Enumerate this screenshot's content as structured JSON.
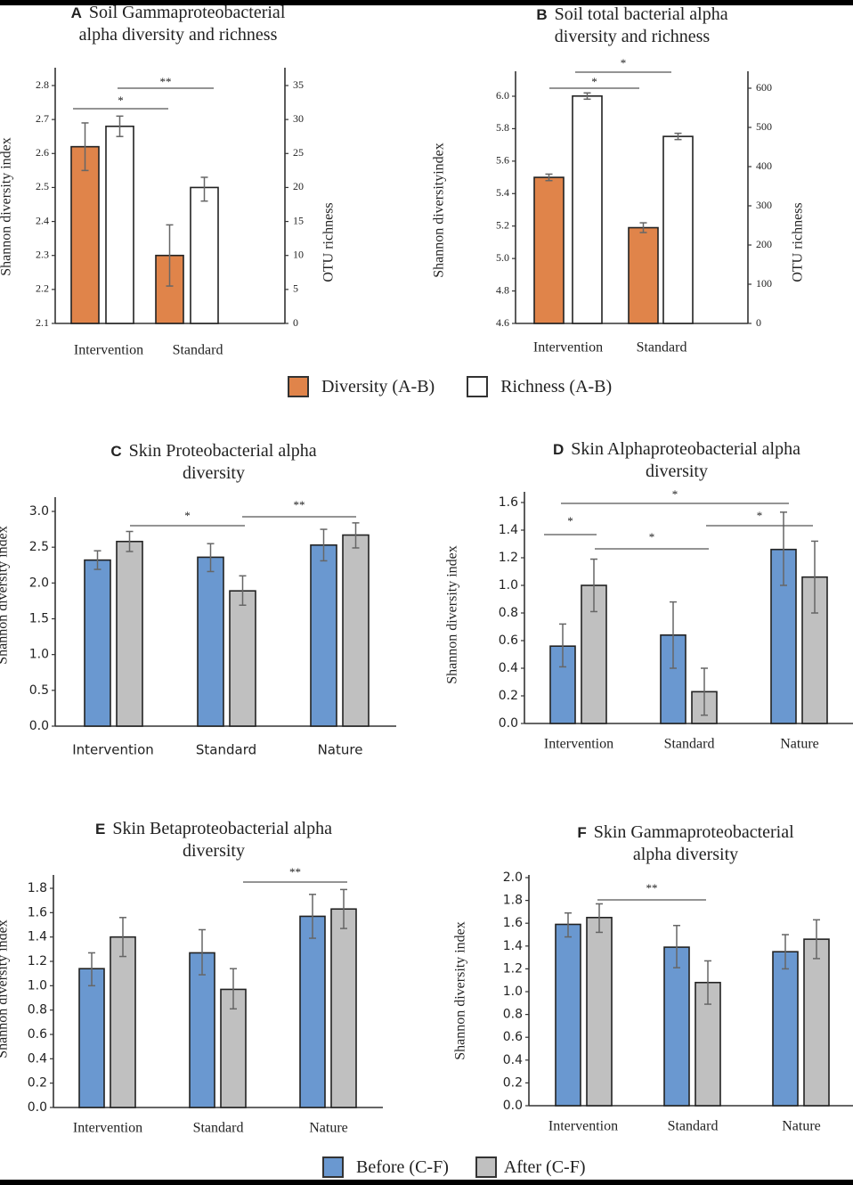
{
  "colors": {
    "diversity": "#e0844a",
    "richness": "#ffffff",
    "before": "#6a98d0",
    "after": "#c0c0c0",
    "axis": "#333333",
    "errorbar": "#666666"
  },
  "legend_ab": {
    "items": [
      {
        "label": "Diversity (A-B)",
        "color": "#e0844a"
      },
      {
        "label": "Richness (A-B)",
        "color": "#ffffff"
      }
    ]
  },
  "legend_cf": {
    "items": [
      {
        "label": "Before (C-F)",
        "color": "#6a98d0"
      },
      {
        "label": "After (C-F)",
        "color": "#c0c0c0"
      }
    ]
  },
  "chart_data": [
    {
      "id": "A",
      "type": "bar",
      "letter": "A",
      "title_line1": "Soil Gammaproteobacterial",
      "title_line2": "alpha diversity and  richness",
      "categories": [
        "Intervention",
        "Standard"
      ],
      "ylabel": "Shannon diversity index",
      "ylabel2": "OTU richness",
      "ylim": [
        2.1,
        2.8
      ],
      "yticks": [
        "2.1",
        "2.2",
        "2.3",
        "2.4",
        "2.5",
        "2.6",
        "2.7",
        "2.8"
      ],
      "y2lim": [
        0,
        35
      ],
      "y2ticks": [
        "0",
        "5",
        "10",
        "15",
        "20",
        "25",
        "30",
        "35"
      ],
      "series": [
        {
          "name": "Diversity (A-B)",
          "axis": "left",
          "values": [
            2.62,
            2.3
          ],
          "err_low": [
            2.55,
            2.21
          ],
          "err_high": [
            2.69,
            2.39
          ]
        },
        {
          "name": "Richness (A-B)",
          "axis": "right",
          "values": [
            29.0,
            20.0
          ],
          "err_low": [
            27.5,
            18.0
          ],
          "err_high": [
            30.5,
            21.5
          ]
        }
      ],
      "significance": [
        {
          "label": "*",
          "from": "Intervention Diversity",
          "to": "Standard Diversity"
        },
        {
          "label": "**",
          "from": "Intervention Richness",
          "to": "Standard Richness"
        }
      ]
    },
    {
      "id": "B",
      "type": "bar",
      "letter": "B",
      "title_line1": "Soil total bacterial alpha",
      "title_line2": "diversity and richness",
      "categories": [
        "Intervention",
        "Standard"
      ],
      "ylabel": "Shannon diversityindex",
      "ylabel2": "OTU richness",
      "ylim": [
        4.6,
        6.0
      ],
      "yticks": [
        "4.6",
        "4.8",
        "5.0",
        "5.2",
        "5.4",
        "5.6",
        "5.8",
        "6.0"
      ],
      "y2lim": [
        0,
        600
      ],
      "y2ticks": [
        "0",
        "100",
        "200",
        "300",
        "400",
        "500",
        "600"
      ],
      "series": [
        {
          "name": "Diversity (A-B)",
          "axis": "left",
          "values": [
            5.5,
            5.19
          ],
          "err_low": [
            5.48,
            5.16
          ],
          "err_high": [
            5.52,
            5.22
          ]
        },
        {
          "name": "Richness (A-B)",
          "axis": "right",
          "values": [
            580,
            477
          ],
          "err_low": [
            572,
            469
          ],
          "err_high": [
            588,
            485
          ]
        }
      ],
      "significance": [
        {
          "label": "*",
          "from": "Intervention Diversity",
          "to": "Standard Diversity"
        },
        {
          "label": "*",
          "from": "Intervention Richness",
          "to": "Standard Richness"
        }
      ]
    },
    {
      "id": "C",
      "type": "bar",
      "letter": "C",
      "title_line1": "Skin Proteobacterial alpha",
      "title_line2": "diversity",
      "categories": [
        "Intervention",
        "Standard",
        "Nature"
      ],
      "ylabel": "Shannon diversity index",
      "ylim": [
        0,
        3.0
      ],
      "yticks": [
        "0.0",
        "0.5",
        "1.0",
        "1.5",
        "2.0",
        "2.5",
        "3.0"
      ],
      "series": [
        {
          "name": "Before (C-F)",
          "values": [
            2.32,
            2.36,
            2.53
          ],
          "err_low": [
            2.19,
            2.16,
            2.31
          ],
          "err_high": [
            2.45,
            2.55,
            2.75
          ]
        },
        {
          "name": "After (C-F)",
          "values": [
            2.58,
            1.89,
            2.67
          ],
          "err_low": [
            2.44,
            1.69,
            2.49
          ],
          "err_high": [
            2.72,
            2.1,
            2.84
          ]
        }
      ],
      "significance": [
        {
          "label": "*",
          "from": "Intervention After",
          "to": "Standard After"
        },
        {
          "label": "**",
          "from": "Standard After",
          "to": "Nature After"
        }
      ]
    },
    {
      "id": "D",
      "type": "bar",
      "letter": "D",
      "title_line1": "Skin Alphaproteobacterial alpha",
      "title_line2": "diversity",
      "categories": [
        "Intervention",
        "Standard",
        "Nature"
      ],
      "ylabel": "Shannon diversity index",
      "ylim": [
        0,
        1.6
      ],
      "yticks": [
        "0.0",
        "0.2",
        "0.4",
        "0.6",
        "0.8",
        "1.0",
        "1.2",
        "1.4",
        "1.6"
      ],
      "series": [
        {
          "name": "Before (C-F)",
          "values": [
            0.56,
            0.64,
            1.26
          ],
          "err_low": [
            0.41,
            0.4,
            1.0
          ],
          "err_high": [
            0.72,
            0.88,
            1.53
          ]
        },
        {
          "name": "After (C-F)",
          "values": [
            1.0,
            0.23,
            1.06
          ],
          "err_low": [
            0.81,
            0.06,
            0.8
          ],
          "err_high": [
            1.19,
            0.4,
            1.32
          ]
        }
      ],
      "significance": [
        {
          "label": "*",
          "from": "Intervention Before",
          "to": "Nature Before"
        },
        {
          "label": "*",
          "from": "Intervention Before",
          "to": "Intervention After"
        },
        {
          "label": "*",
          "from": "Intervention After",
          "to": "Standard After"
        },
        {
          "label": "*",
          "from": "Standard After",
          "to": "Nature After"
        }
      ]
    },
    {
      "id": "E",
      "type": "bar",
      "letter": "E",
      "title_line1": "Skin Betaproteobacterial alpha",
      "title_line2": "diversity",
      "categories": [
        "Intervention",
        "Standard",
        "Nature"
      ],
      "ylabel": "Shannon diversity index",
      "ylim": [
        0,
        1.8
      ],
      "yticks": [
        "0.0",
        "0.2",
        "0.4",
        "0.6",
        "0.8",
        "1.0",
        "1.2",
        "1.4",
        "1.6",
        "1.8"
      ],
      "series": [
        {
          "name": "Before (C-F)",
          "values": [
            1.14,
            1.27,
            1.57
          ],
          "err_low": [
            1.0,
            1.09,
            1.39
          ],
          "err_high": [
            1.27,
            1.46,
            1.75
          ]
        },
        {
          "name": "After (C-F)",
          "values": [
            1.4,
            0.97,
            1.63
          ],
          "err_low": [
            1.24,
            0.81,
            1.47
          ],
          "err_high": [
            1.56,
            1.14,
            1.79
          ]
        }
      ],
      "significance": [
        {
          "label": "**",
          "from": "Standard After",
          "to": "Nature After"
        }
      ]
    },
    {
      "id": "F",
      "type": "bar",
      "letter": "F",
      "title_line1": "Skin Gammaproteobacterial",
      "title_line2": "alpha diversity",
      "categories": [
        "Intervention",
        "Standard",
        "Nature"
      ],
      "ylabel": "Shannon diversity index",
      "ylim": [
        0,
        2.0
      ],
      "yticks": [
        "0.0",
        "0.2",
        "0.4",
        "0.6",
        "0.8",
        "1.0",
        "1.2",
        "1.4",
        "1.6",
        "1.8",
        "2.0"
      ],
      "series": [
        {
          "name": "Before (C-F)",
          "values": [
            1.59,
            1.39,
            1.35
          ],
          "err_low": [
            1.48,
            1.21,
            1.2
          ],
          "err_high": [
            1.69,
            1.58,
            1.5
          ]
        },
        {
          "name": "After (C-F)",
          "values": [
            1.65,
            1.08,
            1.46
          ],
          "err_low": [
            1.52,
            0.89,
            1.29
          ],
          "err_high": [
            1.77,
            1.27,
            1.63
          ]
        }
      ],
      "significance": [
        {
          "label": "**",
          "from": "Intervention After",
          "to": "Standard After"
        }
      ]
    }
  ]
}
